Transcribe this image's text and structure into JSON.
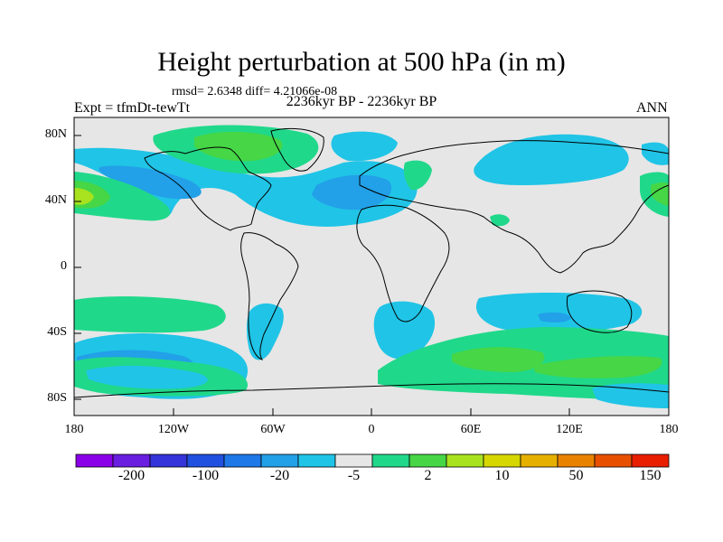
{
  "header": {
    "title": "Height perturbation at 500 hPa (in m)",
    "stats": "rmsd= 2.6348 diff= 4.21066e-08",
    "experiment": "Expt = tfmDt-tewTt",
    "period": "2236kyr BP - 2236kyr BP",
    "season": "ANN"
  },
  "axes": {
    "lat_labels": [
      "80N",
      "40N",
      "0",
      "40S",
      "80S"
    ],
    "lon_labels": [
      "180",
      "120W",
      "60W",
      "0",
      "60E",
      "120E",
      "180"
    ]
  },
  "colorbar": {
    "colors": [
      "#8a00e8",
      "#6a1ee0",
      "#3434d8",
      "#2050e0",
      "#1e78e8",
      "#22a0e8",
      "#20c4e6",
      "#e6e6e6",
      "#20d88a",
      "#46d646",
      "#a8e21e",
      "#d6d600",
      "#e6b000",
      "#e88200",
      "#e85000",
      "#e81e00"
    ],
    "labels": [
      "-200",
      "-100",
      "-20",
      "-5",
      "2",
      "10",
      "50",
      "150"
    ]
  },
  "colors": {
    "ocean_background": "#e6e6e6",
    "coastline": "#000000"
  }
}
